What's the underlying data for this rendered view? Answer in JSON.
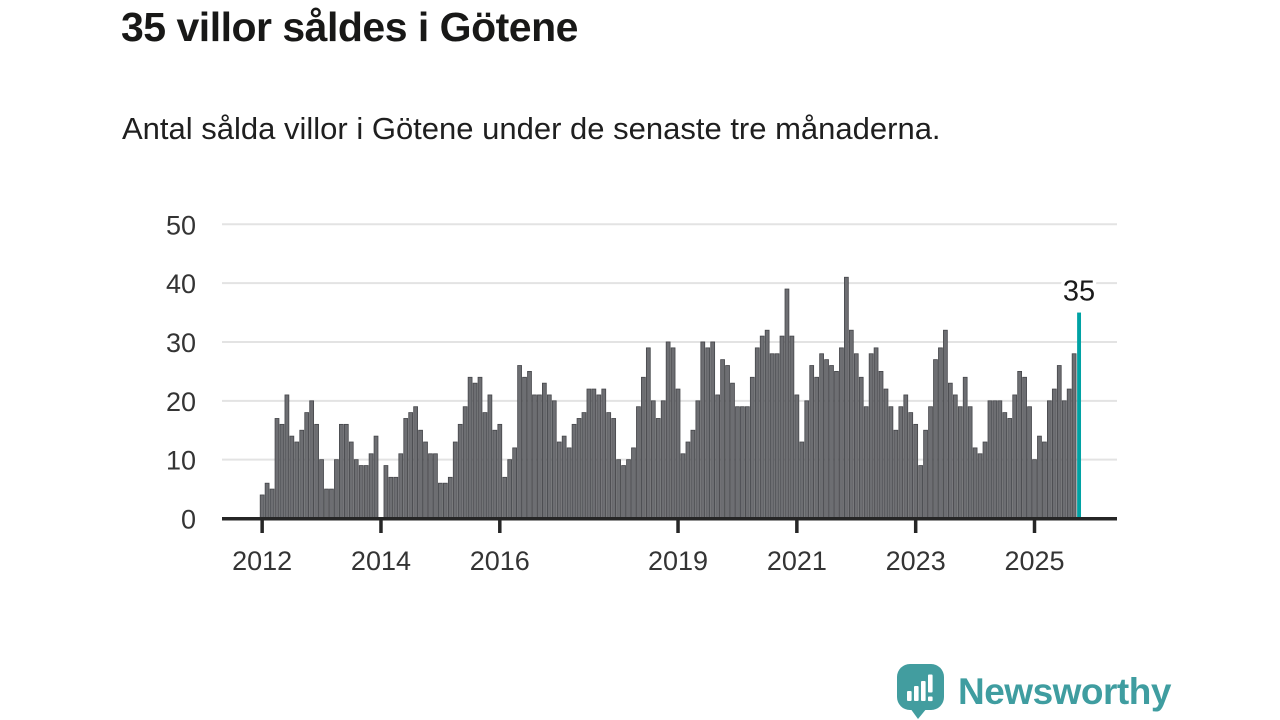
{
  "header": {
    "title": "35 villor såldes i Götene",
    "subtitle": "Antal sålda villor i Götene under de senaste tre månaderna."
  },
  "chart_data": {
    "type": "bar",
    "title": "35 villor såldes i Götene",
    "subtitle": "Antal sålda villor i Götene under de senaste tre månaderna.",
    "xlabel": "",
    "ylabel": "",
    "ylim": [
      0,
      50
    ],
    "y_ticks": [
      0,
      10,
      20,
      30,
      40,
      50
    ],
    "x_tick_years": [
      2012,
      2014,
      2016,
      2019,
      2021,
      2023,
      2025
    ],
    "grid": true,
    "start_year": 2012,
    "start_month": 1,
    "frequency": "monthly",
    "values": [
      4,
      6,
      5,
      17,
      16,
      21,
      14,
      13,
      15,
      18,
      20,
      16,
      10,
      5,
      5,
      10,
      16,
      16,
      13,
      10,
      9,
      9,
      11,
      14,
      0,
      9,
      7,
      7,
      11,
      17,
      18,
      19,
      15,
      13,
      11,
      11,
      6,
      6,
      7,
      13,
      16,
      19,
      24,
      23,
      24,
      18,
      21,
      15,
      16,
      7,
      10,
      12,
      26,
      24,
      25,
      21,
      21,
      23,
      21,
      20,
      13,
      14,
      12,
      16,
      17,
      18,
      22,
      22,
      21,
      22,
      18,
      17,
      10,
      9,
      10,
      12,
      19,
      24,
      29,
      20,
      17,
      20,
      30,
      29,
      22,
      11,
      13,
      15,
      20,
      30,
      29,
      30,
      21,
      27,
      26,
      23,
      19,
      19,
      19,
      24,
      29,
      31,
      32,
      28,
      28,
      31,
      39,
      31,
      21,
      13,
      20,
      26,
      24,
      28,
      27,
      26,
      25,
      29,
      41,
      32,
      28,
      24,
      19,
      28,
      29,
      25,
      22,
      19,
      15,
      19,
      21,
      18,
      16,
      9,
      15,
      19,
      27,
      29,
      32,
      23,
      21,
      19,
      24,
      19,
      12,
      11,
      13,
      20,
      20,
      20,
      18,
      17,
      21,
      25,
      24,
      19,
      10,
      14,
      13,
      20,
      22,
      26,
      20,
      22,
      28
    ],
    "highlight": {
      "value": 35,
      "label": "35"
    },
    "colors": {
      "bar": "#6d6e72",
      "bar_stroke": "#45464a",
      "highlight": "#00a2a4",
      "gridline": "#e3e3e3",
      "axis": "#262626",
      "tick_label": "#343434",
      "annotation": "#1b1b1b"
    }
  },
  "footer": {
    "brand": "Newsworthy",
    "brand_color": "#3f9da0",
    "logo_icon": "newsworthy-speech-bubble-bars-icon"
  }
}
